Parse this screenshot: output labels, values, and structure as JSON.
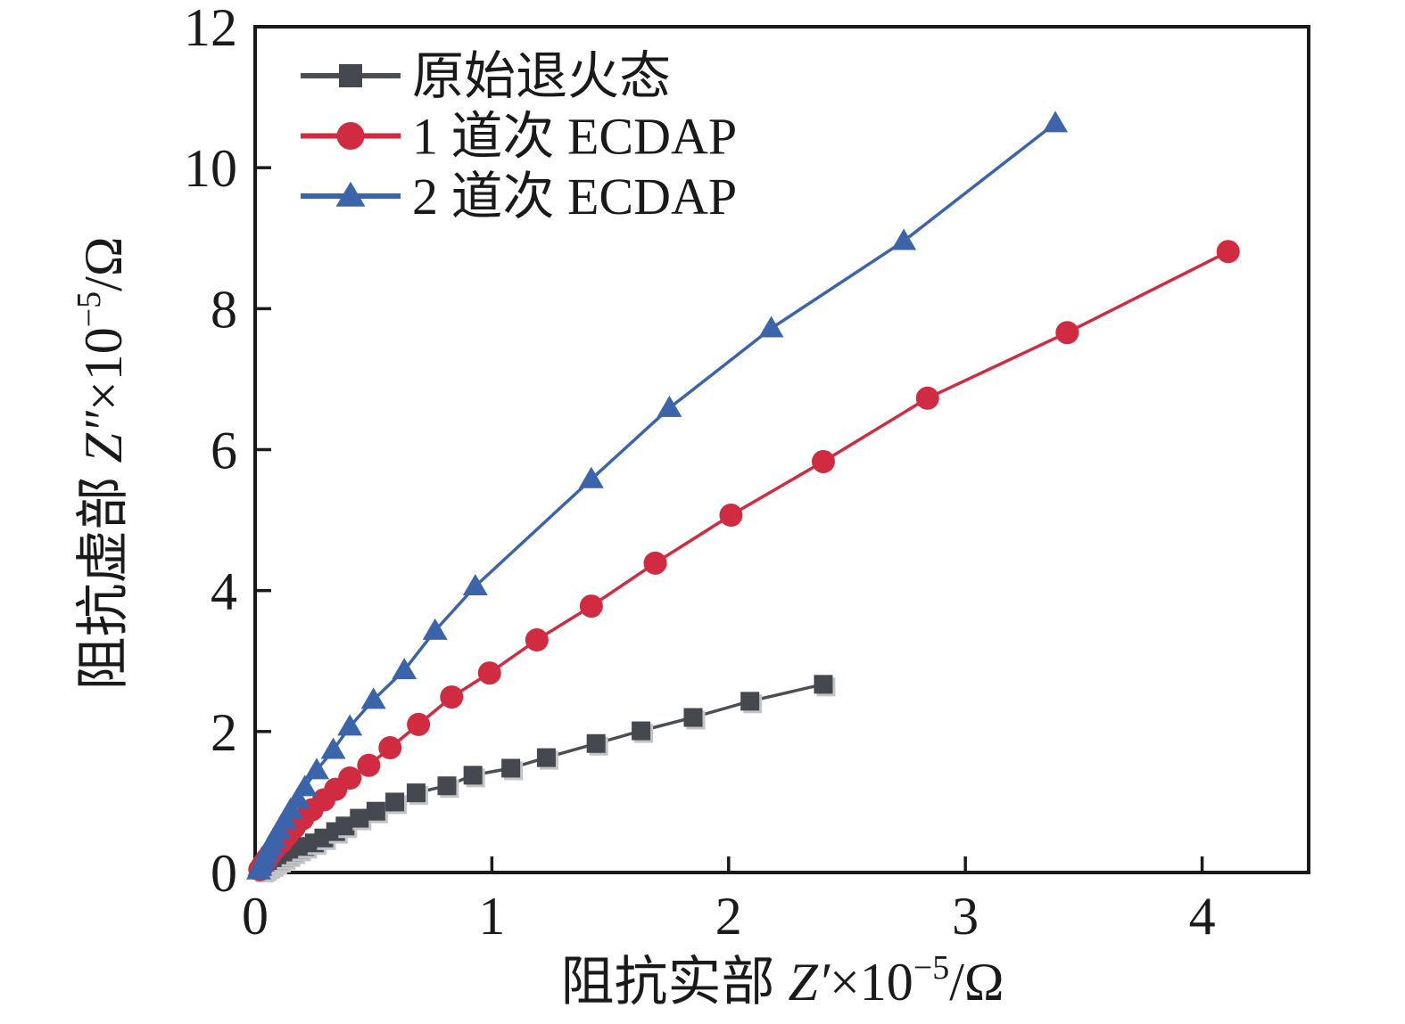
{
  "colors": {
    "background": "#ffffff",
    "axis": "#1a1a1a",
    "annealed_line": "#4b4e54",
    "annealed_marker": "#45484e",
    "square_shadow": "#c3c4c6",
    "ecdap1": "#d02b41",
    "ecdap2": "#3c64ab"
  },
  "chart_data": {
    "type": "scatter",
    "title": "",
    "xlabel": "阻抗实部 Z′×10⁻⁵/Ω",
    "ylabel": "阻抗虚部 Z″×10⁻⁵/Ω",
    "xlabel_parts": {
      "cjk": "阻抗实部 ",
      "symbol": "Z′",
      "base": "×10",
      "exp": "−5",
      "unit": "/Ω"
    },
    "ylabel_parts": {
      "cjk": "阻抗虚部 ",
      "symbol": "Z″",
      "base": "×10",
      "exp": "−5",
      "unit": "/Ω"
    },
    "xlim": [
      0,
      4.45
    ],
    "ylim": [
      0,
      12
    ],
    "xticks": [
      0,
      1,
      2,
      3,
      4
    ],
    "yticks": [
      0,
      2,
      4,
      6,
      8,
      10,
      12
    ],
    "grid": false,
    "legend_position": "top-left-inside",
    "series": [
      {
        "name": "原始退火态",
        "marker": "square",
        "line_color": "#4b4e54",
        "marker_color": "#45484e",
        "points": [
          [
            0.03,
            0.03
          ],
          [
            0.04,
            0.05
          ],
          [
            0.055,
            0.08
          ],
          [
            0.07,
            0.11
          ],
          [
            0.085,
            0.14
          ],
          [
            0.1,
            0.17
          ],
          [
            0.12,
            0.21
          ],
          [
            0.14,
            0.25
          ],
          [
            0.16,
            0.29
          ],
          [
            0.185,
            0.33
          ],
          [
            0.21,
            0.37
          ],
          [
            0.25,
            0.42
          ],
          [
            0.29,
            0.49
          ],
          [
            0.34,
            0.58
          ],
          [
            0.38,
            0.66
          ],
          [
            0.44,
            0.77
          ],
          [
            0.51,
            0.87
          ],
          [
            0.59,
            1.0
          ],
          [
            0.68,
            1.13
          ],
          [
            0.81,
            1.23
          ],
          [
            0.92,
            1.38
          ],
          [
            1.08,
            1.48
          ],
          [
            1.23,
            1.63
          ],
          [
            1.44,
            1.83
          ],
          [
            1.63,
            2.01
          ],
          [
            1.85,
            2.2
          ],
          [
            2.09,
            2.43
          ],
          [
            2.4,
            2.67
          ]
        ]
      },
      {
        "name": "1 道次 ECDAP",
        "marker": "circle",
        "line_color": "#d02b41",
        "marker_color": "#d02b41",
        "points": [
          [
            0.02,
            0.04
          ],
          [
            0.028,
            0.08
          ],
          [
            0.038,
            0.13
          ],
          [
            0.05,
            0.19
          ],
          [
            0.065,
            0.26
          ],
          [
            0.085,
            0.34
          ],
          [
            0.11,
            0.43
          ],
          [
            0.135,
            0.53
          ],
          [
            0.165,
            0.64
          ],
          [
            0.2,
            0.76
          ],
          [
            0.24,
            0.89
          ],
          [
            0.29,
            1.03
          ],
          [
            0.34,
            1.18
          ],
          [
            0.4,
            1.34
          ],
          [
            0.48,
            1.52
          ],
          [
            0.57,
            1.77
          ],
          [
            0.69,
            2.1
          ],
          [
            0.83,
            2.49
          ],
          [
            0.99,
            2.83
          ],
          [
            1.19,
            3.3
          ],
          [
            1.42,
            3.78
          ],
          [
            1.69,
            4.39
          ],
          [
            2.01,
            5.07
          ],
          [
            2.4,
            5.83
          ],
          [
            2.84,
            6.73
          ],
          [
            3.43,
            7.66
          ],
          [
            4.11,
            8.81
          ]
        ]
      },
      {
        "name": "2 道次 ECDAP",
        "marker": "triangle",
        "line_color": "#3c64ab",
        "marker_color": "#3c64ab",
        "points": [
          [
            0.015,
            0.03
          ],
          [
            0.02,
            0.08
          ],
          [
            0.03,
            0.14
          ],
          [
            0.04,
            0.21
          ],
          [
            0.05,
            0.29
          ],
          [
            0.065,
            0.38
          ],
          [
            0.08,
            0.48
          ],
          [
            0.1,
            0.6
          ],
          [
            0.125,
            0.74
          ],
          [
            0.15,
            0.89
          ],
          [
            0.18,
            1.04
          ],
          [
            0.21,
            1.21
          ],
          [
            0.26,
            1.45
          ],
          [
            0.33,
            1.74
          ],
          [
            0.4,
            2.07
          ],
          [
            0.5,
            2.45
          ],
          [
            0.63,
            2.87
          ],
          [
            0.76,
            3.43
          ],
          [
            0.93,
            4.06
          ],
          [
            1.42,
            5.58
          ],
          [
            1.75,
            6.59
          ],
          [
            2.18,
            7.72
          ],
          [
            2.74,
            8.96
          ],
          [
            3.38,
            10.63
          ]
        ]
      }
    ]
  },
  "legend": {
    "items": [
      {
        "label": "原始退火态"
      },
      {
        "label": "1 道次 ECDAP"
      },
      {
        "label": "2 道次 ECDAP"
      }
    ]
  }
}
